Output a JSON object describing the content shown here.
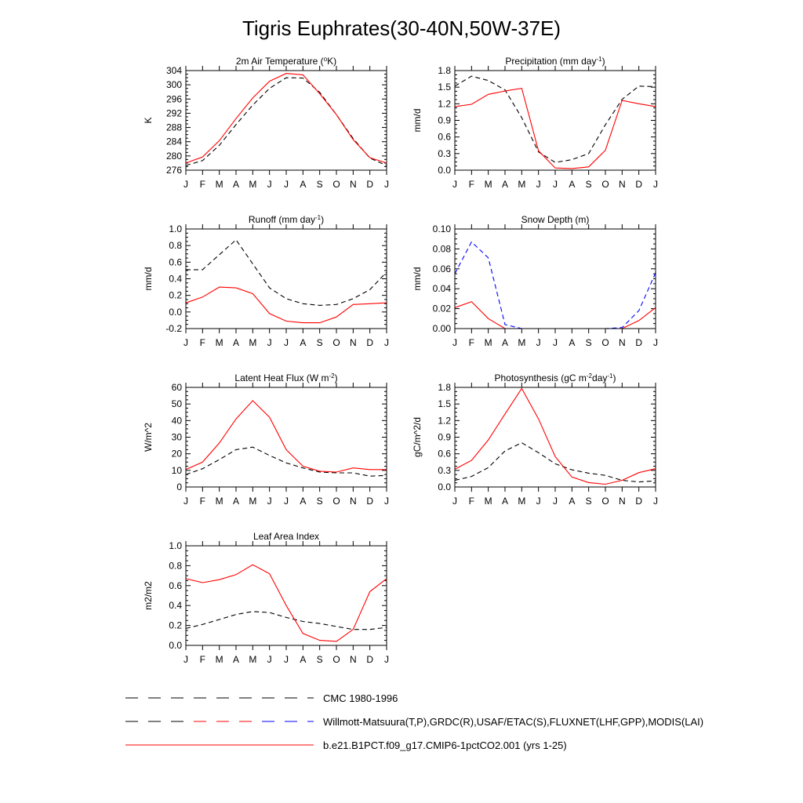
{
  "figure": {
    "title": "Tigris Euphrates(30-40N,50W-37E)"
  },
  "legend": {
    "entries": [
      {
        "label": "CMC 1980-1996",
        "style": "dashed",
        "colors": [
          "#000000"
        ]
      },
      {
        "label": "Willmott-Matsuura(T,P),GRDC(R),USAF/ETAC(S),FLUXNET(LHF,GPP),MODIS(LAI)",
        "style": "dashed",
        "colors": [
          "#000000",
          "#ff0000",
          "#0000ff"
        ]
      },
      {
        "label": "b.e21.B1PCT.f09_g17.CMIP6-1pctCO2.001 (yrs 1-25)",
        "style": "solid",
        "colors": [
          "#ff0000"
        ]
      }
    ]
  },
  "colors": {
    "model": "#ff0000",
    "cmc": "#000000",
    "obs_snow": "#0000ff"
  },
  "chart_data": [
    {
      "type": "line",
      "title": "2m Air Temperature (°K)",
      "title_parts": [
        {
          "t": "2m Air Temperature ("
        },
        {
          "t": "o",
          "sup": true
        },
        {
          "t": "K)"
        }
      ],
      "ylabel": "K",
      "categories": [
        "J",
        "F",
        "M",
        "A",
        "M",
        "J",
        "J",
        "A",
        "S",
        "O",
        "N",
        "D",
        "J"
      ],
      "ylim": [
        276,
        304
      ],
      "yticks": [
        "276",
        "280",
        "284",
        "288",
        "292",
        "296",
        "300",
        "304"
      ],
      "series": [
        {
          "role": "cmc",
          "style": "dashed",
          "color": "#000000",
          "values": [
            277.3,
            278.7,
            283.0,
            288.8,
            294.3,
            299.0,
            302.0,
            301.9,
            297.9,
            291.6,
            284.9,
            279.4,
            277.3
          ]
        },
        {
          "role": "model",
          "style": "solid",
          "color": "#ff0000",
          "values": [
            278.0,
            279.7,
            284.3,
            290.5,
            296.3,
            301.0,
            303.2,
            302.8,
            297.5,
            291.6,
            284.6,
            279.5,
            278.0
          ]
        }
      ]
    },
    {
      "type": "line",
      "title": "Precipitation (mm day-1)",
      "title_parts": [
        {
          "t": "Precipitation (mm day"
        },
        {
          "t": "-1",
          "sup": true
        },
        {
          "t": ")"
        }
      ],
      "ylabel": "mm/d",
      "categories": [
        "J",
        "F",
        "M",
        "A",
        "M",
        "J",
        "J",
        "A",
        "S",
        "O",
        "N",
        "D",
        "J"
      ],
      "ylim": [
        0.0,
        1.8
      ],
      "yticks": [
        "0.0",
        "0.3",
        "0.6",
        "0.9",
        "1.2",
        "1.5",
        "1.8"
      ],
      "series": [
        {
          "role": "cmc",
          "style": "dashed",
          "color": "#000000",
          "values": [
            1.52,
            1.7,
            1.62,
            1.45,
            0.95,
            0.33,
            0.14,
            0.19,
            0.3,
            0.82,
            1.28,
            1.52,
            1.51
          ]
        },
        {
          "role": "model",
          "style": "solid",
          "color": "#ff0000",
          "values": [
            1.15,
            1.19,
            1.37,
            1.43,
            1.48,
            0.35,
            0.04,
            0.03,
            0.06,
            0.36,
            1.26,
            1.2,
            1.15
          ]
        }
      ]
    },
    {
      "type": "line",
      "title": "Runoff (mm day-1)",
      "title_parts": [
        {
          "t": "Runoff (mm day"
        },
        {
          "t": "-1",
          "sup": true
        },
        {
          "t": ")"
        }
      ],
      "ylabel": "mm/d",
      "categories": [
        "J",
        "F",
        "M",
        "A",
        "M",
        "J",
        "J",
        "A",
        "S",
        "O",
        "N",
        "D",
        "J"
      ],
      "ylim": [
        -0.2,
        1.0
      ],
      "yticks": [
        "-0.2",
        "0.0",
        "0.2",
        "0.4",
        "0.6",
        "0.8",
        "1.0"
      ],
      "series": [
        {
          "role": "cmc",
          "style": "dashed",
          "color": "#000000",
          "values": [
            0.51,
            0.51,
            0.69,
            0.87,
            0.58,
            0.29,
            0.16,
            0.1,
            0.08,
            0.09,
            0.16,
            0.27,
            0.48
          ]
        },
        {
          "role": "model",
          "style": "solid",
          "color": "#ff0000",
          "values": [
            0.11,
            0.18,
            0.3,
            0.29,
            0.22,
            -0.02,
            -0.11,
            -0.13,
            -0.13,
            -0.06,
            0.09,
            0.1,
            0.11
          ]
        }
      ]
    },
    {
      "type": "line",
      "title": "Snow Depth (m)",
      "title_parts": [
        {
          "t": "Snow Depth (m)"
        }
      ],
      "ylabel": "mm/d",
      "categories": [
        "J",
        "F",
        "M",
        "A",
        "M",
        "J",
        "J",
        "A",
        "S",
        "O",
        "N",
        "D",
        "J"
      ],
      "ylim": [
        0.0,
        0.1
      ],
      "yticks": [
        "0.00",
        "0.02",
        "0.04",
        "0.06",
        "0.08",
        "0.10"
      ],
      "series": [
        {
          "role": "obs",
          "style": "dashed",
          "color": "#0000ff",
          "values": [
            0.055,
            0.087,
            0.071,
            0.004,
            0.0,
            0.0,
            0.0,
            0.0,
            0.0,
            0.0,
            0.001,
            0.018,
            0.056
          ]
        },
        {
          "role": "cmc",
          "style": "dashed",
          "color": "#000000",
          "values": [
            0.0,
            0.0,
            0.0,
            0.0,
            0.0,
            0.0,
            0.0,
            0.0,
            0.0,
            0.0,
            0.0,
            0.0,
            0.0
          ]
        },
        {
          "role": "model",
          "style": "solid",
          "color": "#ff0000",
          "values": [
            0.021,
            0.027,
            0.01,
            0.0,
            0.0,
            0.0,
            0.0,
            0.0,
            0.0,
            0.0,
            0.0,
            0.008,
            0.021
          ]
        }
      ]
    },
    {
      "type": "line",
      "title": "Latent Heat Flux (W m-2)",
      "title_parts": [
        {
          "t": "Latent Heat Flux (W m"
        },
        {
          "t": "-2",
          "sup": true
        },
        {
          "t": ")"
        }
      ],
      "ylabel": "W/m^2",
      "categories": [
        "J",
        "F",
        "M",
        "A",
        "M",
        "J",
        "J",
        "A",
        "S",
        "O",
        "N",
        "D",
        "J"
      ],
      "ylim": [
        0,
        60
      ],
      "yticks": [
        "0",
        "10",
        "20",
        "30",
        "40",
        "50",
        "60"
      ],
      "series": [
        {
          "role": "cmc",
          "style": "dashed",
          "color": "#000000",
          "values": [
            7.5,
            11.0,
            16.5,
            22.5,
            24.0,
            19.0,
            14.5,
            11.5,
            9.0,
            8.5,
            8.5,
            6.5,
            7.0
          ]
        },
        {
          "role": "model",
          "style": "solid",
          "color": "#ff0000",
          "values": [
            10.5,
            15.0,
            26.5,
            41.0,
            52.0,
            42.0,
            22.5,
            12.5,
            9.5,
            9.0,
            11.5,
            10.5,
            10.5
          ]
        }
      ]
    },
    {
      "type": "line",
      "title": "Photosynthesis (gC m-2day-1)",
      "title_parts": [
        {
          "t": "Photosynthesis (gC m"
        },
        {
          "t": "-2",
          "sup": true
        },
        {
          "t": "day"
        },
        {
          "t": "-1",
          "sup": true
        },
        {
          "t": ")"
        }
      ],
      "ylabel": "gC/m^2/d",
      "categories": [
        "J",
        "F",
        "M",
        "A",
        "M",
        "J",
        "J",
        "A",
        "S",
        "O",
        "N",
        "D",
        "J"
      ],
      "ylim": [
        0.0,
        1.8
      ],
      "yticks": [
        "0.0",
        "0.3",
        "0.6",
        "0.9",
        "1.2",
        "1.5",
        "1.8"
      ],
      "series": [
        {
          "role": "cmc",
          "style": "dashed",
          "color": "#000000",
          "values": [
            0.12,
            0.19,
            0.35,
            0.65,
            0.8,
            0.62,
            0.42,
            0.31,
            0.25,
            0.21,
            0.12,
            0.09,
            0.11
          ]
        },
        {
          "role": "model",
          "style": "solid",
          "color": "#ff0000",
          "values": [
            0.32,
            0.48,
            0.85,
            1.32,
            1.78,
            1.23,
            0.55,
            0.18,
            0.08,
            0.05,
            0.12,
            0.26,
            0.33
          ]
        }
      ]
    },
    {
      "type": "line",
      "title": "Leaf Area Index",
      "title_parts": [
        {
          "t": "Leaf Area Index"
        }
      ],
      "ylabel": "m2/m2",
      "categories": [
        "J",
        "F",
        "M",
        "A",
        "M",
        "J",
        "J",
        "A",
        "S",
        "O",
        "N",
        "D",
        "J"
      ],
      "ylim": [
        0.0,
        1.0
      ],
      "yticks": [
        "0.0",
        "0.2",
        "0.4",
        "0.6",
        "0.8",
        "1.0"
      ],
      "series": [
        {
          "role": "cmc",
          "style": "dashed",
          "color": "#000000",
          "values": [
            0.17,
            0.21,
            0.26,
            0.31,
            0.34,
            0.33,
            0.28,
            0.24,
            0.22,
            0.19,
            0.16,
            0.16,
            0.18
          ]
        },
        {
          "role": "model",
          "style": "solid",
          "color": "#ff0000",
          "values": [
            0.67,
            0.63,
            0.66,
            0.71,
            0.81,
            0.72,
            0.4,
            0.12,
            0.05,
            0.04,
            0.16,
            0.54,
            0.67
          ]
        }
      ]
    }
  ]
}
